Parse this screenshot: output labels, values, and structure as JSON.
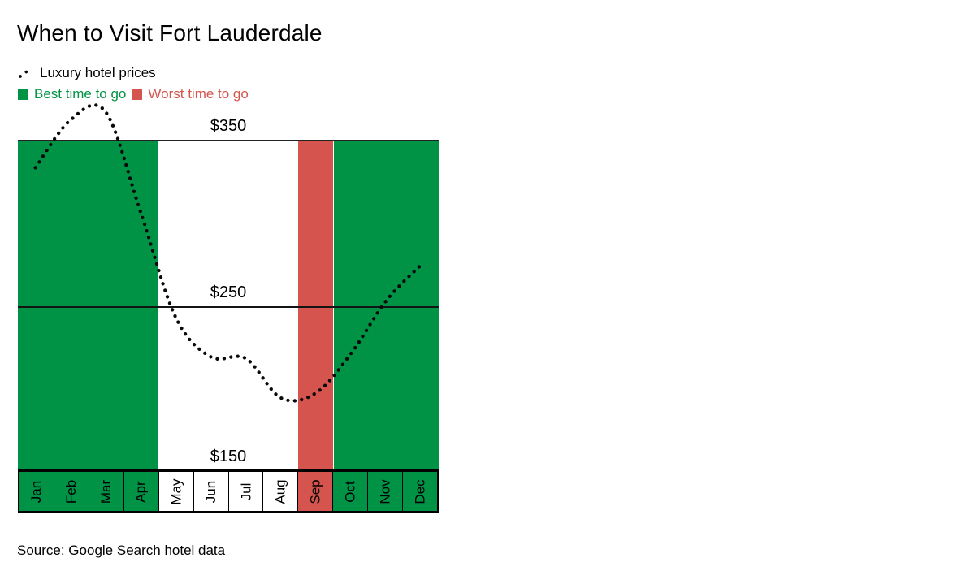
{
  "page": {
    "title": "When to Visit Fort Lauderdale",
    "source": "Source: Google Search hotel data"
  },
  "legend": {
    "line_label": "Luxury hotel prices",
    "best_label": "Best time to go",
    "worst_label": "Worst time to go"
  },
  "colors": {
    "best": "#009245",
    "worst": "#D5544E",
    "neutral": "#FFFFFF",
    "line": "#0A0A0A",
    "grid": "#1A1A1A",
    "text": "#000000"
  },
  "chart_data": {
    "type": "line",
    "title": "When to Visit Fort Lauderdale",
    "series_name": "Luxury hotel prices",
    "line_style": "dotted",
    "categories": [
      "Jan",
      "Feb",
      "Mar",
      "Apr",
      "May",
      "Jun",
      "Jul",
      "Aug",
      "Sep",
      "Oct",
      "Nov",
      "Dec"
    ],
    "values": [
      334,
      363,
      368,
      307,
      243,
      219,
      218,
      194,
      197,
      221,
      253,
      275
    ],
    "peak_value": 371,
    "min_value": 191,
    "ylim": [
      150,
      350
    ],
    "ytick_values": [
      350,
      250,
      150
    ],
    "yticks": [
      "$350",
      "$250",
      "$150"
    ],
    "zones": [
      {
        "type": "best",
        "label": "Best time to go",
        "from": "Jan",
        "to": "Apr"
      },
      {
        "type": "neutral",
        "label": "",
        "from": "May",
        "to": "Aug"
      },
      {
        "type": "worst",
        "label": "Worst time to go",
        "from": "Sep",
        "to": "Sep"
      },
      {
        "type": "best",
        "label": "Best time to go",
        "from": "Oct",
        "to": "Dec"
      }
    ],
    "legend_position": "top-left",
    "grid": "horizontal lines at $350, $250, $150",
    "source": "Source: Google Search hotel data"
  }
}
